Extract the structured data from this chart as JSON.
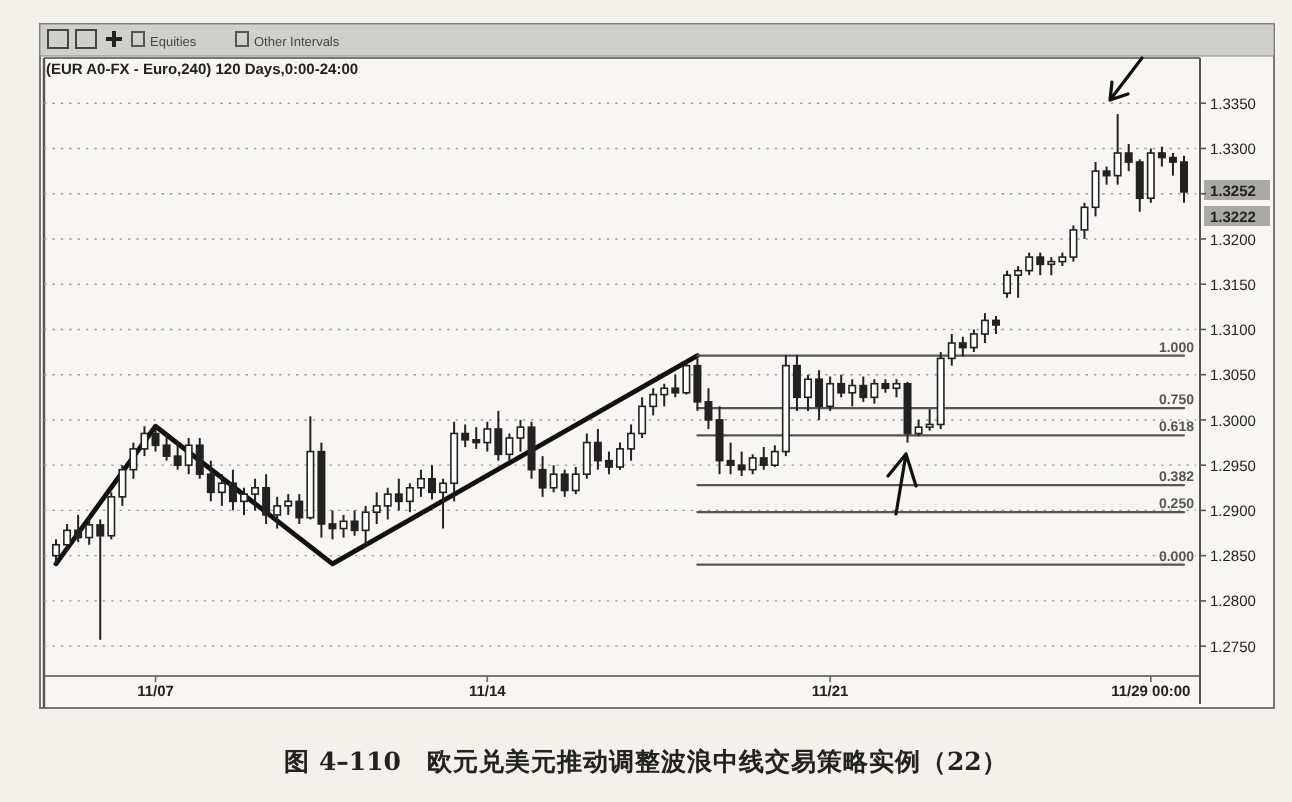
{
  "chart_data": {
    "type": "candlestick",
    "title": "图 4–110　欧元兑美元推动调整波浪中线交易策略实例（22）",
    "subtitle": "(EUR A0-FX - Euro,240) 120 Days,0:00-24:00",
    "color": "#222222",
    "grid": "y",
    "ylim": [
      1.2717,
      1.34
    ],
    "legend": "right",
    "yticks": [
      {
        "value": 1.275,
        "label": "1.2750"
      },
      {
        "value": 1.28,
        "label": "1.2800"
      },
      {
        "value": 1.285,
        "label": "1.2850"
      },
      {
        "value": 1.29,
        "label": "1.2900"
      },
      {
        "value": 1.295,
        "label": "1.2950"
      },
      {
        "value": 1.3,
        "label": "1.3000"
      },
      {
        "value": 1.305,
        "label": "1.3050"
      },
      {
        "value": 1.31,
        "label": "1.3100"
      },
      {
        "value": 1.315,
        "label": "1.3150"
      },
      {
        "value": 1.32,
        "label": "1.3200"
      },
      {
        "value": 1.325,
        "label": null
      },
      {
        "value": 1.33,
        "label": "1.3300"
      },
      {
        "value": 1.335,
        "label": "1.3350"
      }
    ],
    "annotations": [
      "Equities",
      "Other Intervals",
      "1.3252",
      "1.3222"
    ],
    "categories": [
      null,
      null,
      null,
      null,
      null,
      null,
      null,
      null,
      null,
      "11/07",
      null,
      null,
      null,
      null,
      null,
      null,
      null,
      null,
      null,
      null,
      null,
      null,
      null,
      null,
      null,
      null,
      null,
      null,
      null,
      null,
      null,
      null,
      null,
      null,
      null,
      null,
      null,
      null,
      null,
      "11/14",
      null,
      null,
      null,
      null,
      null,
      null,
      null,
      null,
      null,
      null,
      null,
      null,
      null,
      null,
      null,
      null,
      null,
      null,
      null,
      null,
      null,
      null,
      null,
      null,
      null,
      null,
      null,
      null,
      null,
      null,
      "11/21",
      null,
      null,
      null,
      null,
      null,
      null,
      null,
      null,
      null,
      null,
      null,
      null,
      null,
      null,
      null,
      null,
      null,
      null,
      null,
      null,
      null,
      null,
      null,
      null,
      null,
      null,
      null,
      null,
      "11/29 00:00",
      null,
      null,
      null
    ],
    "ohlc": [
      [
        1.285,
        1.2868,
        1.284,
        1.2862
      ],
      [
        1.2862,
        1.2885,
        1.2855,
        1.2878
      ],
      [
        1.2878,
        1.2895,
        1.2865,
        1.287
      ],
      [
        1.287,
        1.289,
        1.2862,
        1.2884
      ],
      [
        1.2884,
        1.289,
        1.2757,
        1.2872
      ],
      [
        1.2872,
        1.292,
        1.2868,
        1.2915
      ],
      [
        1.2915,
        1.295,
        1.2905,
        1.2945
      ],
      [
        1.2945,
        1.2975,
        1.2935,
        1.2968
      ],
      [
        1.2968,
        1.2993,
        1.296,
        1.2985
      ],
      [
        1.2985,
        1.299,
        1.2965,
        1.2972
      ],
      [
        1.2972,
        1.2985,
        1.2955,
        1.296
      ],
      [
        1.296,
        1.2975,
        1.2945,
        1.295
      ],
      [
        1.295,
        1.298,
        1.294,
        1.2972
      ],
      [
        1.2972,
        1.298,
        1.2935,
        1.294
      ],
      [
        1.294,
        1.2955,
        1.291,
        1.292
      ],
      [
        1.292,
        1.294,
        1.2905,
        1.293
      ],
      [
        1.293,
        1.2945,
        1.29,
        1.291
      ],
      [
        1.291,
        1.2925,
        1.2895,
        1.2918
      ],
      [
        1.2918,
        1.2935,
        1.29,
        1.2925
      ],
      [
        1.2925,
        1.294,
        1.2885,
        1.2895
      ],
      [
        1.2895,
        1.2915,
        1.288,
        1.2905
      ],
      [
        1.2905,
        1.2918,
        1.2895,
        1.291
      ],
      [
        1.291,
        1.2918,
        1.2885,
        1.2892
      ],
      [
        1.2892,
        1.3004,
        1.289,
        1.2965
      ],
      [
        1.2965,
        1.2975,
        1.287,
        1.2885
      ],
      [
        1.2885,
        1.29,
        1.2868,
        1.288
      ],
      [
        1.288,
        1.2895,
        1.287,
        1.2888
      ],
      [
        1.2888,
        1.29,
        1.2872,
        1.2878
      ],
      [
        1.2878,
        1.2905,
        1.2862,
        1.2898
      ],
      [
        1.2898,
        1.292,
        1.2885,
        1.2905
      ],
      [
        1.2905,
        1.2925,
        1.289,
        1.2918
      ],
      [
        1.2918,
        1.2935,
        1.29,
        1.291
      ],
      [
        1.291,
        1.293,
        1.2898,
        1.2925
      ],
      [
        1.2925,
        1.2945,
        1.2915,
        1.2935
      ],
      [
        1.2935,
        1.295,
        1.2912,
        1.292
      ],
      [
        1.292,
        1.2935,
        1.288,
        1.293
      ],
      [
        1.293,
        1.2998,
        1.291,
        1.2985
      ],
      [
        1.2985,
        1.2995,
        1.297,
        1.2978
      ],
      [
        1.2978,
        1.2992,
        1.2968,
        1.2975
      ],
      [
        1.2975,
        1.2998,
        1.2965,
        1.299
      ],
      [
        1.299,
        1.301,
        1.2955,
        1.2962
      ],
      [
        1.2962,
        1.2985,
        1.2955,
        1.298
      ],
      [
        1.298,
        1.3,
        1.2965,
        1.2992
      ],
      [
        1.2992,
        1.2998,
        1.2935,
        1.2945
      ],
      [
        1.2945,
        1.296,
        1.2915,
        1.2925
      ],
      [
        1.2925,
        1.295,
        1.292,
        1.294
      ],
      [
        1.294,
        1.2945,
        1.2915,
        1.2922
      ],
      [
        1.2922,
        1.2948,
        1.2918,
        1.294
      ],
      [
        1.294,
        1.2985,
        1.2935,
        1.2975
      ],
      [
        1.2975,
        1.299,
        1.2945,
        1.2955
      ],
      [
        1.2955,
        1.2965,
        1.294,
        1.2948
      ],
      [
        1.2948,
        1.2975,
        1.2945,
        1.2968
      ],
      [
        1.2968,
        1.2995,
        1.2955,
        1.2985
      ],
      [
        1.2985,
        1.3025,
        1.298,
        1.3015
      ],
      [
        1.3015,
        1.3035,
        1.3005,
        1.3028
      ],
      [
        1.3028,
        1.304,
        1.3015,
        1.3035
      ],
      [
        1.3035,
        1.305,
        1.3025,
        1.303
      ],
      [
        1.303,
        1.3065,
        1.3028,
        1.306
      ],
      [
        1.306,
        1.3068,
        1.301,
        1.302
      ],
      [
        1.302,
        1.3035,
        1.299,
        1.3
      ],
      [
        1.3,
        1.3015,
        1.294,
        1.2955
      ],
      [
        1.2955,
        1.2975,
        1.294,
        1.295
      ],
      [
        1.295,
        1.2965,
        1.2938,
        1.2945
      ],
      [
        1.2945,
        1.2962,
        1.294,
        1.2958
      ],
      [
        1.2958,
        1.297,
        1.2945,
        1.295
      ],
      [
        1.295,
        1.2972,
        1.2948,
        1.2965
      ],
      [
        1.2965,
        1.3072,
        1.296,
        1.306
      ],
      [
        1.306,
        1.3072,
        1.301,
        1.3025
      ],
      [
        1.3025,
        1.305,
        1.301,
        1.3045
      ],
      [
        1.3045,
        1.3055,
        1.3,
        1.3015
      ],
      [
        1.3015,
        1.3048,
        1.301,
        1.304
      ],
      [
        1.304,
        1.305,
        1.3025,
        1.303
      ],
      [
        1.303,
        1.3045,
        1.3015,
        1.3038
      ],
      [
        1.3038,
        1.3048,
        1.302,
        1.3025
      ],
      [
        1.3025,
        1.3045,
        1.3018,
        1.304
      ],
      [
        1.304,
        1.3045,
        1.303,
        1.3035
      ],
      [
        1.3035,
        1.3045,
        1.3025,
        1.304
      ],
      [
        1.304,
        1.3042,
        1.2975,
        1.2985
      ],
      [
        1.2985,
        1.3,
        1.2982,
        1.2992
      ],
      [
        1.2992,
        1.3012,
        1.2988,
        1.2995
      ],
      [
        1.2995,
        1.3075,
        1.299,
        1.3068
      ],
      [
        1.3068,
        1.3095,
        1.306,
        1.3085
      ],
      [
        1.3085,
        1.3092,
        1.307,
        1.308
      ],
      [
        1.308,
        1.31,
        1.3075,
        1.3095
      ],
      [
        1.3095,
        1.3118,
        1.3085,
        1.311
      ],
      [
        1.311,
        1.3115,
        1.3095,
        1.3105
      ],
      [
        1.314,
        1.3165,
        1.3135,
        1.316
      ],
      [
        1.316,
        1.317,
        1.3135,
        1.3165
      ],
      [
        1.3165,
        1.3185,
        1.316,
        1.318
      ],
      [
        1.318,
        1.3185,
        1.316,
        1.3172
      ],
      [
        1.3172,
        1.318,
        1.316,
        1.3175
      ],
      [
        1.3175,
        1.3185,
        1.317,
        1.318
      ],
      [
        1.318,
        1.3215,
        1.3175,
        1.321
      ],
      [
        1.321,
        1.324,
        1.32,
        1.3235
      ],
      [
        1.3235,
        1.3285,
        1.3225,
        1.3275
      ],
      [
        1.3275,
        1.328,
        1.326,
        1.327
      ],
      [
        1.327,
        1.3338,
        1.326,
        1.3295
      ],
      [
        1.3295,
        1.3305,
        1.3275,
        1.3285
      ],
      [
        1.3285,
        1.3288,
        1.323,
        1.3245
      ],
      [
        1.3245,
        1.33,
        1.324,
        1.3295
      ],
      [
        1.3295,
        1.3302,
        1.328,
        1.329
      ],
      [
        1.329,
        1.3295,
        1.327,
        1.3285
      ],
      [
        1.3285,
        1.3292,
        1.324,
        1.3252
      ]
    ],
    "series": [
      {
        "type": "line",
        "color": "#111111",
        "values": [
          1.2841,
          null,
          null,
          null,
          null,
          null,
          null,
          null,
          null,
          1.2993,
          null,
          null,
          null,
          null,
          null,
          null,
          null,
          null,
          null,
          null,
          null,
          null,
          null,
          null,
          null,
          1.2841,
          null,
          null,
          null,
          null,
          null,
          null,
          null,
          null,
          null,
          null,
          null,
          null,
          null,
          null,
          null,
          null,
          null,
          null,
          null,
          null,
          null,
          null,
          null,
          null,
          null,
          null,
          null,
          null,
          null,
          null,
          null,
          null,
          1.3071,
          null,
          null,
          null,
          null,
          null,
          null,
          null,
          null,
          null,
          null,
          null,
          null,
          null,
          null,
          null,
          null,
          null,
          null,
          null,
          null,
          null,
          null,
          null,
          null,
          null,
          null,
          null,
          null,
          null,
          null,
          null,
          null,
          null,
          null,
          null,
          null,
          null,
          null,
          null,
          null,
          null,
          null,
          null,
          null
        ]
      },
      {
        "type": "line",
        "name": "1.000",
        "color": "#555555",
        "values": [
          null,
          null,
          null,
          null,
          null,
          null,
          null,
          null,
          null,
          null,
          null,
          null,
          null,
          null,
          null,
          null,
          null,
          null,
          null,
          null,
          null,
          null,
          null,
          null,
          null,
          null,
          null,
          null,
          null,
          null,
          null,
          null,
          null,
          null,
          null,
          null,
          null,
          null,
          null,
          null,
          null,
          null,
          null,
          null,
          null,
          null,
          null,
          null,
          null,
          null,
          null,
          null,
          null,
          null,
          null,
          null,
          null,
          null,
          1.3071,
          null,
          null,
          null,
          null,
          null,
          null,
          null,
          null,
          null,
          null,
          null,
          null,
          null,
          null,
          null,
          null,
          null,
          null,
          null,
          null,
          null,
          null,
          null,
          null,
          null,
          null,
          null,
          null,
          null,
          null,
          null,
          null,
          null,
          null,
          null,
          null,
          null,
          null,
          null,
          null,
          null,
          null,
          null,
          1.3071
        ]
      },
      {
        "type": "line",
        "name": "0.750",
        "color": "#555555",
        "values": [
          null,
          null,
          null,
          null,
          null,
          null,
          null,
          null,
          null,
          null,
          null,
          null,
          null,
          null,
          null,
          null,
          null,
          null,
          null,
          null,
          null,
          null,
          null,
          null,
          null,
          null,
          null,
          null,
          null,
          null,
          null,
          null,
          null,
          null,
          null,
          null,
          null,
          null,
          null,
          null,
          null,
          null,
          null,
          null,
          null,
          null,
          null,
          null,
          null,
          null,
          null,
          null,
          null,
          null,
          null,
          null,
          null,
          null,
          1.3013,
          null,
          null,
          null,
          null,
          null,
          null,
          null,
          null,
          null,
          null,
          null,
          null,
          null,
          null,
          null,
          null,
          null,
          null,
          null,
          null,
          null,
          null,
          null,
          null,
          null,
          null,
          null,
          null,
          null,
          null,
          null,
          null,
          null,
          null,
          null,
          null,
          null,
          null,
          null,
          null,
          null,
          null,
          null,
          1.3013
        ]
      },
      {
        "type": "line",
        "name": "0.618",
        "color": "#555555",
        "values": [
          null,
          null,
          null,
          null,
          null,
          null,
          null,
          null,
          null,
          null,
          null,
          null,
          null,
          null,
          null,
          null,
          null,
          null,
          null,
          null,
          null,
          null,
          null,
          null,
          null,
          null,
          null,
          null,
          null,
          null,
          null,
          null,
          null,
          null,
          null,
          null,
          null,
          null,
          null,
          null,
          null,
          null,
          null,
          null,
          null,
          null,
          null,
          null,
          null,
          null,
          null,
          null,
          null,
          null,
          null,
          null,
          null,
          null,
          1.2983,
          null,
          null,
          null,
          null,
          null,
          null,
          null,
          null,
          null,
          null,
          null,
          null,
          null,
          null,
          null,
          null,
          null,
          null,
          null,
          null,
          null,
          null,
          null,
          null,
          null,
          null,
          null,
          null,
          null,
          null,
          null,
          null,
          null,
          null,
          null,
          null,
          null,
          null,
          null,
          null,
          null,
          null,
          null,
          1.2983
        ]
      },
      {
        "type": "line",
        "name": "0.382",
        "color": "#555555",
        "values": [
          null,
          null,
          null,
          null,
          null,
          null,
          null,
          null,
          null,
          null,
          null,
          null,
          null,
          null,
          null,
          null,
          null,
          null,
          null,
          null,
          null,
          null,
          null,
          null,
          null,
          null,
          null,
          null,
          null,
          null,
          null,
          null,
          null,
          null,
          null,
          null,
          null,
          null,
          null,
          null,
          null,
          null,
          null,
          null,
          null,
          null,
          null,
          null,
          null,
          null,
          null,
          null,
          null,
          null,
          null,
          null,
          null,
          null,
          1.2928,
          null,
          null,
          null,
          null,
          null,
          null,
          null,
          null,
          null,
          null,
          null,
          null,
          null,
          null,
          null,
          null,
          null,
          null,
          null,
          null,
          null,
          null,
          null,
          null,
          null,
          null,
          null,
          null,
          null,
          null,
          null,
          null,
          null,
          null,
          null,
          null,
          null,
          null,
          null,
          null,
          null,
          null,
          null,
          1.2928
        ]
      },
      {
        "type": "line",
        "name": "0.250",
        "color": "#555555",
        "values": [
          null,
          null,
          null,
          null,
          null,
          null,
          null,
          null,
          null,
          null,
          null,
          null,
          null,
          null,
          null,
          null,
          null,
          null,
          null,
          null,
          null,
          null,
          null,
          null,
          null,
          null,
          null,
          null,
          null,
          null,
          null,
          null,
          null,
          null,
          null,
          null,
          null,
          null,
          null,
          null,
          null,
          null,
          null,
          null,
          null,
          null,
          null,
          null,
          null,
          null,
          null,
          null,
          null,
          null,
          null,
          null,
          null,
          null,
          1.2898,
          null,
          null,
          null,
          null,
          null,
          null,
          null,
          null,
          null,
          null,
          null,
          null,
          null,
          null,
          null,
          null,
          null,
          null,
          null,
          null,
          null,
          null,
          null,
          null,
          null,
          null,
          null,
          null,
          null,
          null,
          null,
          null,
          null,
          null,
          null,
          null,
          null,
          null,
          null,
          null,
          null,
          null,
          null,
          1.2898
        ]
      },
      {
        "type": "line",
        "name": "0.000",
        "color": "#555555",
        "values": [
          null,
          null,
          null,
          null,
          null,
          null,
          null,
          null,
          null,
          null,
          null,
          null,
          null,
          null,
          null,
          null,
          null,
          null,
          null,
          null,
          null,
          null,
          null,
          null,
          null,
          null,
          null,
          null,
          null,
          null,
          null,
          null,
          null,
          null,
          null,
          null,
          null,
          null,
          null,
          null,
          null,
          null,
          null,
          null,
          null,
          null,
          null,
          null,
          null,
          null,
          null,
          null,
          null,
          null,
          null,
          null,
          null,
          null,
          1.284,
          null,
          null,
          null,
          null,
          null,
          null,
          null,
          null,
          null,
          null,
          null,
          null,
          null,
          null,
          null,
          null,
          null,
          null,
          null,
          null,
          null,
          null,
          null,
          null,
          null,
          null,
          null,
          null,
          null,
          null,
          null,
          null,
          null,
          null,
          null,
          null,
          null,
          null,
          null,
          null,
          null,
          null,
          null,
          1.284
        ]
      }
    ]
  }
}
